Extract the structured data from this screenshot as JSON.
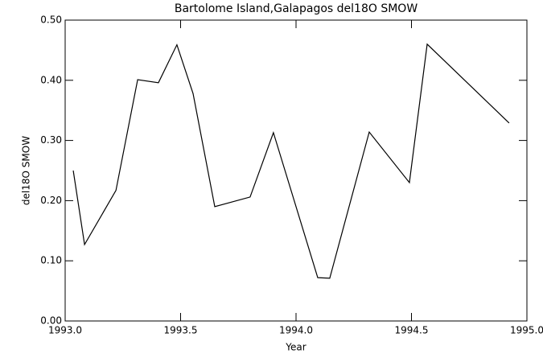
{
  "chart_data": {
    "type": "line",
    "title": "Bartolome Island,Galapagos del18O SMOW",
    "x_label": "Year",
    "y_label": "del18O SMOW",
    "x": [
      1993.035,
      1993.084,
      1993.22,
      1993.314,
      1993.404,
      1993.484,
      1993.554,
      1993.648,
      1993.801,
      1993.902,
      1994.094,
      1994.146,
      1994.317,
      1994.491,
      1994.568,
      1994.923
    ],
    "values": [
      0.25,
      0.127,
      0.217,
      0.401,
      0.396,
      0.459,
      0.378,
      0.19,
      0.206,
      0.313,
      0.072,
      0.071,
      0.314,
      0.23,
      0.46,
      0.329
    ],
    "color": "#000000",
    "xlim": [
      1993.0,
      1995.0
    ],
    "xticks": [
      {
        "value": 1993,
        "label": "1993.0"
      },
      {
        "value": 1993.5,
        "label": "1993.5"
      },
      {
        "value": 1994,
        "label": "1994.0"
      },
      {
        "value": 1994.5,
        "label": "1994.5"
      },
      {
        "value": 1995,
        "label": "1995.0"
      }
    ],
    "ylim": [
      0,
      0.5
    ],
    "yticks": [
      {
        "value": 0,
        "label": "0.00"
      },
      {
        "value": 0.1,
        "label": "0.10"
      },
      {
        "value": 0.2,
        "label": "0.20"
      },
      {
        "value": 0.3,
        "label": "0.30"
      },
      {
        "value": 0.4,
        "label": "0.40"
      },
      {
        "value": 0.5,
        "label": "0.50"
      }
    ]
  }
}
